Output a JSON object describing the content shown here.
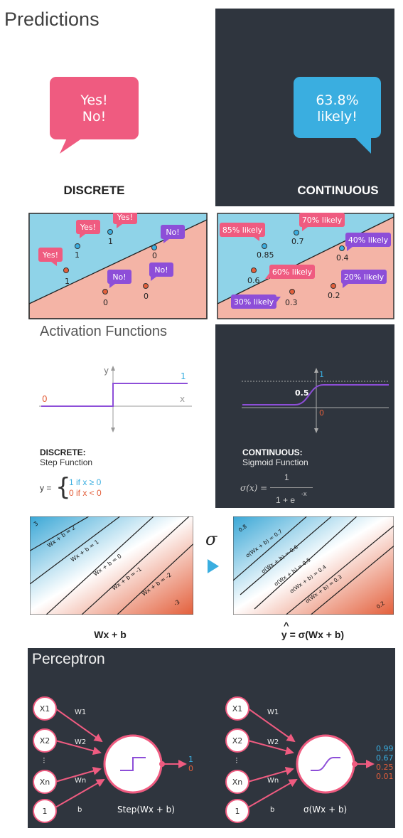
{
  "predictions": {
    "title": "Predictions",
    "discrete_bubble": [
      "Yes!",
      "No!"
    ],
    "continuous_bubble": [
      "63.8%",
      "likely!"
    ],
    "discrete_label": "DISCRETE",
    "continuous_label": "CONTINUOUS"
  },
  "discrete_plot": {
    "yes_labels": [
      "Yes!",
      "Yes!",
      "Yes!"
    ],
    "no_labels": [
      "No!",
      "No!",
      "No!"
    ],
    "point_values": [
      "1",
      "1",
      "1",
      "0",
      "0",
      "0"
    ]
  },
  "continuous_plot": {
    "tags": [
      "85% likely",
      "70% likely",
      "40% likely",
      "60% likely",
      "20% likely",
      "30% likely"
    ],
    "point_values": [
      "0.85",
      "0.7",
      "0.4",
      "0.6",
      "0.2",
      "0.3"
    ]
  },
  "activation": {
    "title": "Activation Functions",
    "step": {
      "y_axis": "y",
      "x_axis": "x",
      "high_value": "1",
      "low_value": "0",
      "name": "DISCRETE:",
      "function_name": "Step Function",
      "formula_lhs": "y =",
      "case_1": "1 if x  ≥ 0",
      "case_0": "0 if x < 0"
    },
    "sigmoid": {
      "one": "1",
      "half": "0.5",
      "zero": "0",
      "name": "CONTINUOUS:",
      "function_name": "Sigmoid Function",
      "formula_lhs": "σ(x) =",
      "numerator": "1",
      "denominator": "1 + e",
      "exponent": "-x"
    }
  },
  "score_maps": {
    "left_lines": [
      "Wx + b = 2",
      "Wx + b = 1",
      "Wx + b = 0",
      "Wx + b = -1",
      "Wx + b = -2"
    ],
    "left_corner_top": "3",
    "left_corner_bottom": "-3",
    "right_lines": [
      "σ(Wx + b) = 0.7",
      "σ(Wx + b) = 0.6",
      "σ(Wx + b) = 0.5",
      "σ(Wx + b) = 0.4",
      "σ(Wx + b) = 0.3"
    ],
    "right_corner_top": "0.8",
    "right_corner_bottom": "0.2",
    "sigma_symbol": "σ",
    "left_caption": "Wx + b",
    "right_caption_hat": "^",
    "right_caption": "y = σ(Wx + b)"
  },
  "perceptron": {
    "title": "Perceptron",
    "inputs": [
      "X1",
      "X2",
      "Xn",
      "1"
    ],
    "dots": "⁝",
    "weights": [
      "W1",
      "W2",
      "Wn",
      "b"
    ],
    "step_caption": "Step(Wx + b)",
    "step_outputs": [
      "1",
      "0"
    ],
    "sigmoid_caption": "σ(Wx + b)",
    "sigmoid_outputs": [
      "0.99",
      "0.67",
      "0.25",
      "0.01"
    ]
  },
  "colors": {
    "pink": "#ef5b80",
    "blue": "#3aaee0",
    "purple": "#8d4ed8",
    "dark": "#2f353e",
    "red_orange": "#e35f3b"
  }
}
